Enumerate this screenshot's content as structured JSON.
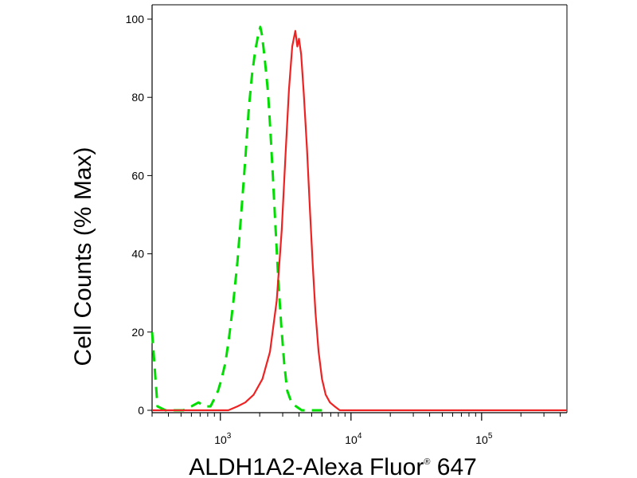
{
  "chart_data": {
    "type": "line",
    "title": "",
    "xlabel_main": "ALDH1A2-Alexa Fluor",
    "xlabel_sup": "®",
    "xlabel_tail": " 647",
    "ylabel": "Cell Counts (% Max)",
    "xscale": "log",
    "xlim": [
      300,
      450000
    ],
    "ylim": [
      0,
      100
    ],
    "grid": false,
    "legend": "none",
    "y_ticks": [
      "0",
      "20",
      "40",
      "60",
      "80",
      "100"
    ],
    "x_ticks": [
      {
        "base": "10",
        "exp": "3",
        "value": 1000
      },
      {
        "base": "10",
        "exp": "4",
        "value": 10000
      },
      {
        "base": "10",
        "exp": "5",
        "value": 100000
      }
    ],
    "series": [
      {
        "color": "#00dd00",
        "style": "dashed",
        "x": [
          300,
          330,
          380,
          450,
          520,
          600,
          680,
          760,
          840,
          900,
          960,
          1020,
          1090,
          1160,
          1250,
          1350,
          1450,
          1550,
          1650,
          1750,
          1850,
          1950,
          2020,
          2080,
          2150,
          2230,
          2320,
          2420,
          2530,
          2650,
          2780,
          2920,
          3080,
          3250,
          3500,
          3800,
          4200,
          4600,
          5200,
          6000
        ],
        "y": [
          20,
          1,
          0,
          0,
          0,
          1,
          2,
          1,
          1,
          3,
          5,
          8,
          12,
          18,
          27,
          38,
          51,
          64,
          77,
          86,
          92,
          96,
          98,
          96,
          92,
          87,
          81,
          71,
          59,
          46,
          33,
          22,
          12,
          5,
          2,
          1,
          0,
          0,
          0,
          0
        ]
      },
      {
        "color": "#ee2222",
        "style": "solid",
        "x": [
          300,
          700,
          1000,
          1150,
          1350,
          1550,
          1800,
          2100,
          2400,
          2700,
          2950,
          3150,
          3350,
          3550,
          3750,
          3880,
          4000,
          4150,
          4350,
          4600,
          4850,
          5100,
          5350,
          5650,
          6000,
          6400,
          6900,
          7500,
          8200,
          9000,
          10000,
          11500,
          14000,
          20000,
          50000,
          100000,
          200000,
          450000
        ],
        "y": [
          0,
          0,
          0,
          0,
          1,
          2,
          4,
          8,
          15,
          28,
          46,
          65,
          82,
          93,
          97,
          93,
          95,
          91,
          81,
          67,
          51,
          37,
          25,
          15,
          8,
          4,
          2,
          1,
          0,
          0,
          0,
          0,
          0,
          0,
          0,
          0,
          0,
          0
        ]
      }
    ]
  }
}
